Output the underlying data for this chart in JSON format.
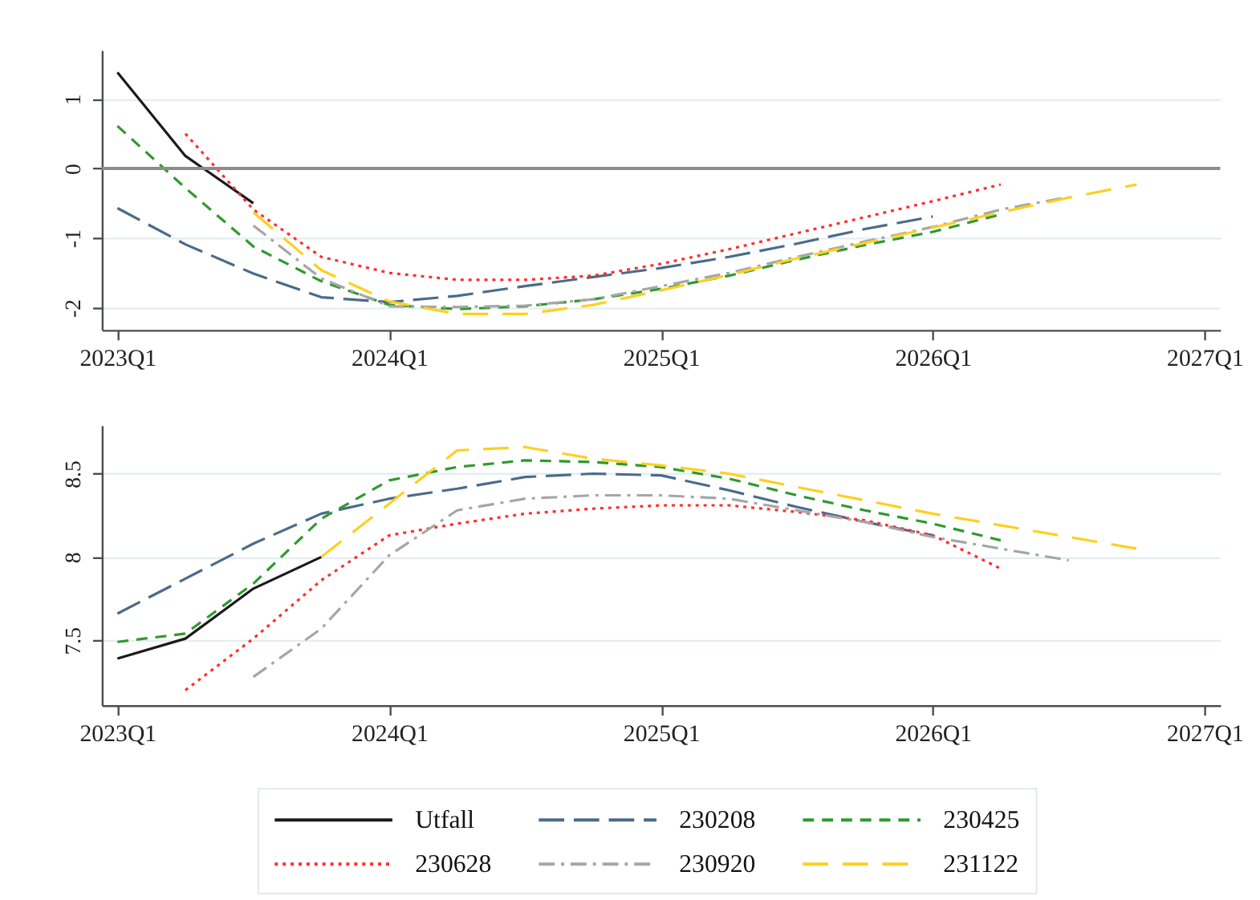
{
  "chart_data": [
    {
      "type": "line",
      "categories": [
        "2023Q1",
        null,
        null,
        null,
        "2024Q1",
        null,
        null,
        null,
        "2025Q1",
        null,
        null,
        null,
        "2026Q1",
        null,
        null,
        null,
        "2027Q1"
      ],
      "ylim": [
        -2.32,
        1.7
      ],
      "yticks": [
        -2,
        -1,
        0,
        1
      ],
      "grid": "y",
      "legend": "bottom",
      "ref_lines": [
        {
          "axis": "y",
          "value": 0,
          "color": "#8c8c8c"
        }
      ],
      "series": [
        {
          "name": "Utfall",
          "color": "#1a1a1a",
          "line_style": "solid",
          "values": [
            1.38,
            0.18,
            -0.5,
            null,
            null,
            null,
            null,
            null,
            null,
            null,
            null,
            null,
            null,
            null,
            null,
            null,
            null
          ]
        },
        {
          "name": "230208",
          "color": "#4a6b8a",
          "line_style": "dashed",
          "values": [
            -0.57,
            -1.09,
            -1.51,
            -1.85,
            -1.92,
            -1.83,
            -1.69,
            -1.56,
            -1.43,
            -1.27,
            -1.08,
            -0.87,
            -0.69,
            null,
            null,
            null,
            null
          ]
        },
        {
          "name": "230425",
          "color": "#2e9a2e",
          "line_style": "dashed",
          "values": [
            0.61,
            -0.28,
            -1.12,
            -1.62,
            -1.96,
            -2.02,
            -1.98,
            -1.88,
            -1.73,
            -1.54,
            -1.31,
            -1.1,
            -0.91,
            -0.66,
            null,
            null,
            null
          ]
        },
        {
          "name": "230628",
          "color": "#ff2d2d",
          "line_style": "dotted",
          "values": [
            null,
            0.5,
            -0.59,
            -1.27,
            -1.5,
            -1.6,
            -1.6,
            -1.54,
            -1.37,
            -1.16,
            -0.93,
            -0.7,
            -0.47,
            -0.23,
            null,
            null,
            null
          ]
        },
        {
          "name": "230920",
          "color": "#a6a6a6",
          "line_style": "dashed",
          "values": [
            null,
            null,
            -0.82,
            -1.58,
            -1.98,
            -1.99,
            -1.97,
            -1.88,
            -1.69,
            -1.5,
            -1.27,
            -1.05,
            -0.84,
            -0.59,
            -0.41,
            null,
            null
          ]
        },
        {
          "name": "231122",
          "color": "#ffcf1f",
          "line_style": "dashed",
          "values": [
            null,
            null,
            -0.63,
            -1.46,
            -1.91,
            -2.09,
            -2.09,
            -1.96,
            -1.75,
            -1.53,
            -1.29,
            -1.07,
            -0.85,
            -0.63,
            -0.42,
            -0.23,
            null
          ]
        }
      ]
    },
    {
      "type": "line",
      "categories": [
        "2023Q1",
        null,
        null,
        null,
        "2024Q1",
        null,
        null,
        null,
        "2025Q1",
        null,
        null,
        null,
        "2026Q1",
        null,
        null,
        null,
        "2027Q1"
      ],
      "ylim": [
        7.11,
        8.79
      ],
      "yticks": [
        7.5,
        8,
        8.5
      ],
      "grid": "y",
      "legend": "bottom",
      "series": [
        {
          "name": "Utfall",
          "color": "#1a1a1a",
          "line_style": "solid",
          "values": [
            7.39,
            7.51,
            7.81,
            8.0,
            null,
            null,
            null,
            null,
            null,
            null,
            null,
            null,
            null,
            null,
            null,
            null,
            null
          ]
        },
        {
          "name": "230208",
          "color": "#4a6b8a",
          "line_style": "dashed",
          "values": [
            7.66,
            7.87,
            8.08,
            8.26,
            8.35,
            8.41,
            8.48,
            8.5,
            8.49,
            8.4,
            8.3,
            8.21,
            8.13,
            null,
            null,
            null,
            null
          ]
        },
        {
          "name": "230425",
          "color": "#2e9a2e",
          "line_style": "dashed",
          "values": [
            7.49,
            7.54,
            7.84,
            8.23,
            8.46,
            8.54,
            8.58,
            8.57,
            8.54,
            8.47,
            8.37,
            8.28,
            8.2,
            8.1,
            null,
            null,
            null
          ]
        },
        {
          "name": "230628",
          "color": "#ff2d2d",
          "line_style": "dotted",
          "values": [
            null,
            7.2,
            7.51,
            7.86,
            8.13,
            8.2,
            8.26,
            8.29,
            8.31,
            8.31,
            8.27,
            8.22,
            8.13,
            7.93,
            null,
            null,
            null
          ]
        },
        {
          "name": "230920",
          "color": "#a6a6a6",
          "line_style": "dashed",
          "values": [
            null,
            null,
            7.28,
            7.57,
            8.01,
            8.28,
            8.35,
            8.37,
            8.37,
            8.35,
            8.28,
            8.21,
            8.12,
            8.05,
            7.98,
            null,
            null
          ]
        },
        {
          "name": "231122",
          "color": "#ffcf1f",
          "line_style": "dashed",
          "values": [
            null,
            null,
            null,
            8.0,
            8.32,
            8.64,
            8.66,
            8.59,
            8.55,
            8.5,
            8.42,
            8.34,
            8.26,
            8.19,
            8.12,
            8.05,
            null
          ]
        }
      ]
    }
  ]
}
